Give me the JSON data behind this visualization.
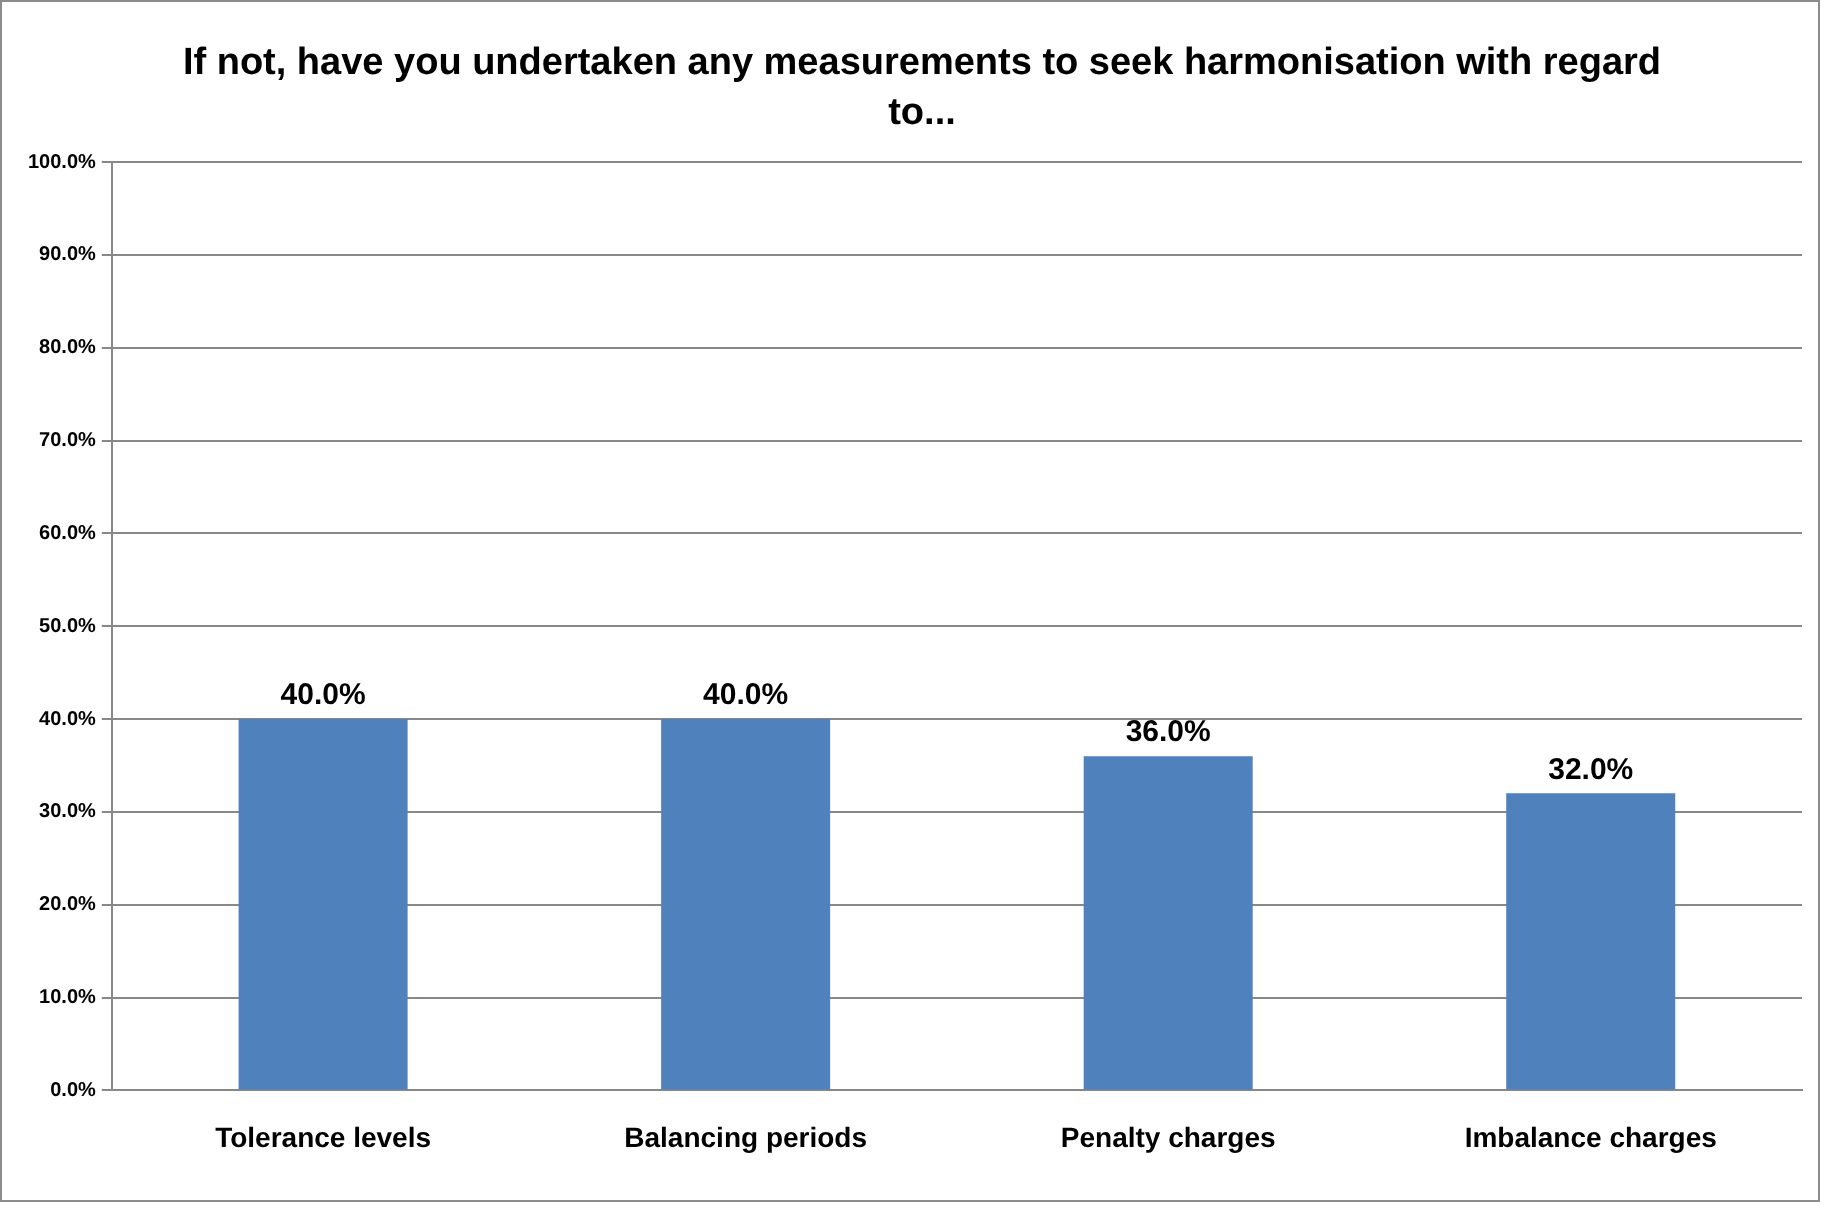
{
  "chart_data": {
    "type": "bar",
    "title": "If not, have you undertaken any measurements to seek harmonisation with regard to...",
    "categories": [
      "Tolerance levels",
      "Balancing periods",
      "Penalty charges",
      "Imbalance charges"
    ],
    "values": [
      40,
      40,
      36,
      32
    ],
    "color": "#4f81bd",
    "value_labels": [
      "40.0%",
      "40.0%",
      "36.0%",
      "32.0%"
    ],
    "ylim": [
      0,
      100
    ],
    "yticks": [
      {
        "value": 0,
        "label": "0.0%"
      },
      {
        "value": 10,
        "label": "10.0%"
      },
      {
        "value": 20,
        "label": "20.0%"
      },
      {
        "value": 30,
        "label": "30.0%"
      },
      {
        "value": 40,
        "label": "40.0%"
      },
      {
        "value": 50,
        "label": "50.0%"
      },
      {
        "value": 60,
        "label": "60.0%"
      },
      {
        "value": 70,
        "label": "70.0%"
      },
      {
        "value": 80,
        "label": "80.0%"
      },
      {
        "value": 90,
        "label": "90.0%"
      },
      {
        "value": 100,
        "label": "100.0%"
      }
    ],
    "grid": "y"
  }
}
